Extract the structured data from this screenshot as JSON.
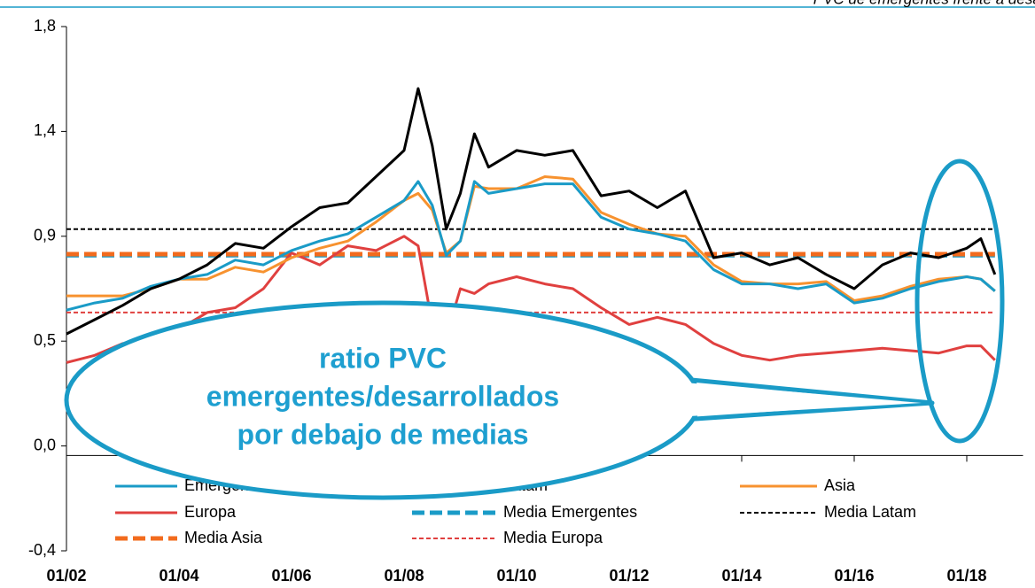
{
  "chart_data": {
    "type": "line",
    "title": "PVC de emergentes frente a desarrollados",
    "annotation": [
      "ratio PVC",
      "emergentes/desarrollados",
      "por debajo de medias"
    ],
    "x": [
      2002,
      2002.5,
      2003,
      2003.5,
      2004,
      2004.5,
      2005,
      2005.5,
      2006,
      2006.5,
      2007,
      2007.5,
      2008,
      2008.25,
      2008.5,
      2008.75,
      2009,
      2009.25,
      2009.5,
      2010,
      2010.5,
      2011,
      2011.5,
      2012,
      2012.5,
      2013,
      2013.5,
      2014,
      2014.5,
      2015,
      2015.5,
      2016,
      2016.5,
      2017,
      2017.5,
      2018,
      2018.25,
      2018.5
    ],
    "xlim": [
      2002,
      2019
    ],
    "xticks": [
      {
        "value": 2002,
        "label": "01/02"
      },
      {
        "value": 2004,
        "label": "01/04"
      },
      {
        "value": 2006,
        "label": "01/06"
      },
      {
        "value": 2008,
        "label": "01/08"
      },
      {
        "value": 2010,
        "label": "01/10"
      },
      {
        "value": 2012,
        "label": "01/12"
      },
      {
        "value": 2014,
        "label": "01/14"
      },
      {
        "value": 2016,
        "label": "01/16"
      },
      {
        "value": 2018,
        "label": "01/18"
      }
    ],
    "ylim": [
      -0.4,
      1.8
    ],
    "yticks": [
      {
        "value": -0.4,
        "label": "-0,4"
      },
      {
        "value": 0.04,
        "label": "0,0"
      },
      {
        "value": 0.48,
        "label": "0,5"
      },
      {
        "value": 0.92,
        "label": "0,9"
      },
      {
        "value": 1.36,
        "label": "1,4"
      },
      {
        "value": 1.8,
        "label": "1,8"
      }
    ],
    "series": [
      {
        "name": "Emergentes",
        "color": "#1a9bc7",
        "style": "solid",
        "values": [
          0.61,
          0.64,
          0.66,
          0.71,
          0.74,
          0.76,
          0.82,
          0.8,
          0.86,
          0.9,
          0.93,
          1.0,
          1.07,
          1.15,
          1.05,
          0.84,
          0.9,
          1.15,
          1.1,
          1.12,
          1.14,
          1.14,
          1.0,
          0.95,
          0.93,
          0.9,
          0.78,
          0.72,
          0.72,
          0.7,
          0.72,
          0.64,
          0.66,
          0.7,
          0.73,
          0.75,
          0.74,
          0.69
        ]
      },
      {
        "name": "Latam",
        "color": "#000000",
        "style": "solid",
        "values": [
          0.51,
          0.57,
          0.63,
          0.7,
          0.74,
          0.8,
          0.89,
          0.87,
          0.96,
          1.04,
          1.06,
          1.17,
          1.28,
          1.54,
          1.3,
          0.95,
          1.1,
          1.35,
          1.21,
          1.28,
          1.26,
          1.28,
          1.09,
          1.11,
          1.04,
          1.11,
          0.83,
          0.85,
          0.8,
          0.83,
          0.76,
          0.7,
          0.8,
          0.85,
          0.83,
          0.87,
          0.91,
          0.76
        ]
      },
      {
        "name": "Asia",
        "color": "#f7922f",
        "style": "solid",
        "values": [
          0.67,
          0.67,
          0.67,
          0.7,
          0.74,
          0.74,
          0.79,
          0.77,
          0.83,
          0.87,
          0.9,
          0.98,
          1.07,
          1.1,
          1.03,
          0.85,
          0.9,
          1.13,
          1.12,
          1.12,
          1.17,
          1.16,
          1.02,
          0.97,
          0.93,
          0.92,
          0.8,
          0.73,
          0.72,
          0.72,
          0.73,
          0.65,
          0.67,
          0.71,
          0.74,
          0.75,
          0.74,
          0.69
        ]
      },
      {
        "name": "Europa",
        "color": "#e0403f",
        "style": "solid",
        "values": [
          0.39,
          0.42,
          0.47,
          0.46,
          0.53,
          0.6,
          0.62,
          0.7,
          0.85,
          0.8,
          0.88,
          0.86,
          0.92,
          0.88,
          0.55,
          0.5,
          0.7,
          0.68,
          0.72,
          0.75,
          0.72,
          0.7,
          0.62,
          0.55,
          0.58,
          0.55,
          0.47,
          0.42,
          0.4,
          0.42,
          0.43,
          0.44,
          0.45,
          0.44,
          0.43,
          0.46,
          0.46,
          0.4
        ]
      },
      {
        "name": "Media Emergentes",
        "color": "#1a9bc7",
        "style": "dashed-thick",
        "values": [
          0.84,
          0.84,
          0.84,
          0.84,
          0.84,
          0.84,
          0.84,
          0.84,
          0.84,
          0.84,
          0.84,
          0.84,
          0.84,
          0.84,
          0.84,
          0.84,
          0.84,
          0.84,
          0.84,
          0.84,
          0.84,
          0.84,
          0.84,
          0.84,
          0.84,
          0.84,
          0.84,
          0.84,
          0.84,
          0.84,
          0.84,
          0.84,
          0.84,
          0.84,
          0.84,
          0.84,
          0.84,
          0.84
        ]
      },
      {
        "name": "Media Latam",
        "color": "#000000",
        "style": "dashed-thin",
        "values": [
          0.95,
          0.95,
          0.95,
          0.95,
          0.95,
          0.95,
          0.95,
          0.95,
          0.95,
          0.95,
          0.95,
          0.95,
          0.95,
          0.95,
          0.95,
          0.95,
          0.95,
          0.95,
          0.95,
          0.95,
          0.95,
          0.95,
          0.95,
          0.95,
          0.95,
          0.95,
          0.95,
          0.95,
          0.95,
          0.95,
          0.95,
          0.95,
          0.95,
          0.95,
          0.95,
          0.95,
          0.95,
          0.95
        ]
      },
      {
        "name": "Media Asia",
        "color": "#f26b1d",
        "style": "dashed-thick",
        "values": [
          0.845,
          0.845,
          0.845,
          0.845,
          0.845,
          0.845,
          0.845,
          0.845,
          0.845,
          0.845,
          0.845,
          0.845,
          0.845,
          0.845,
          0.845,
          0.845,
          0.845,
          0.845,
          0.845,
          0.845,
          0.845,
          0.845,
          0.845,
          0.845,
          0.845,
          0.845,
          0.845,
          0.845,
          0.845,
          0.845,
          0.845,
          0.845,
          0.845,
          0.845,
          0.845,
          0.845,
          0.845,
          0.845
        ]
      },
      {
        "name": "Media Europa",
        "color": "#e0403f",
        "style": "dashed-thin",
        "values": [
          0.6,
          0.6,
          0.6,
          0.6,
          0.6,
          0.6,
          0.6,
          0.6,
          0.6,
          0.6,
          0.6,
          0.6,
          0.6,
          0.6,
          0.6,
          0.6,
          0.6,
          0.6,
          0.6,
          0.6,
          0.6,
          0.6,
          0.6,
          0.6,
          0.6,
          0.6,
          0.6,
          0.6,
          0.6,
          0.6,
          0.6,
          0.6,
          0.6,
          0.6,
          0.6,
          0.6,
          0.6,
          0.6
        ]
      }
    ]
  }
}
